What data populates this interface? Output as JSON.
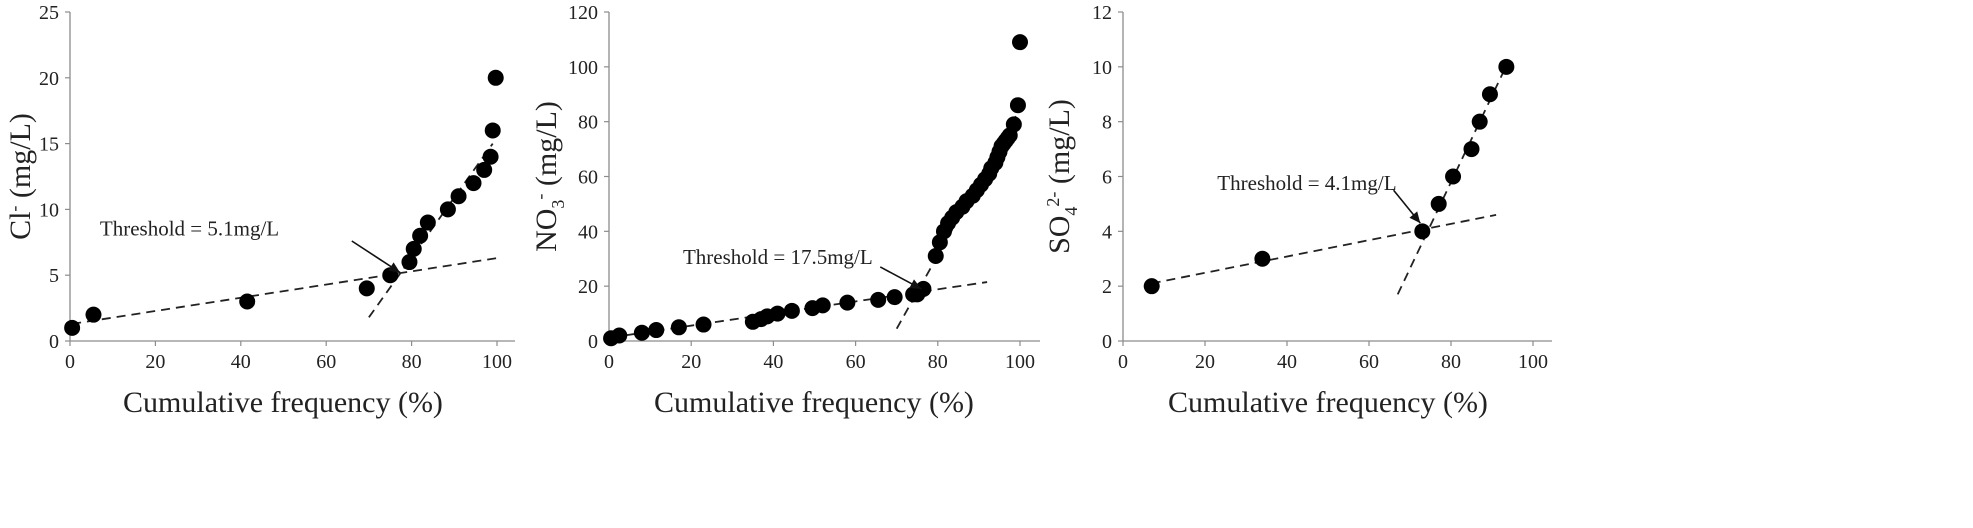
{
  "chart_data": [
    {
      "id": "cl",
      "type": "scatter",
      "ylabel_main": "Cl",
      "ylabel_sup": "-",
      "ylabel_unit": " (mg/L)",
      "xlabel": "Cumulative frequency (%)",
      "xlim": [
        0,
        100
      ],
      "ylim": [
        0,
        25
      ],
      "xticks": [
        0,
        20,
        40,
        60,
        80,
        100
      ],
      "yticks": [
        0,
        5,
        10,
        15,
        20,
        25
      ],
      "points": [
        [
          0.5,
          1
        ],
        [
          5.5,
          2
        ],
        [
          41.5,
          3
        ],
        [
          69.5,
          4
        ],
        [
          75,
          5
        ],
        [
          79.5,
          6
        ],
        [
          80.5,
          7
        ],
        [
          82,
          8
        ],
        [
          83.8,
          9
        ],
        [
          88.5,
          10
        ],
        [
          91,
          11
        ],
        [
          94.5,
          12
        ],
        [
          97,
          13
        ],
        [
          98.5,
          14
        ],
        [
          99,
          16
        ],
        [
          99.7,
          20
        ]
      ],
      "trend_lines": [
        [
          [
            0.5,
            1.3
          ],
          [
            100,
            6.3
          ]
        ],
        [
          [
            70,
            1.8
          ],
          [
            99,
            15
          ]
        ]
      ],
      "annotation": {
        "text": "Threshold = 5.1mg/L",
        "text_x": 7,
        "text_y": 8,
        "arrow_from": [
          66,
          7.6
        ],
        "arrow_to": [
          77.3,
          5.2
        ]
      }
    },
    {
      "id": "no3",
      "type": "scatter",
      "ylabel_main": "NO",
      "ylabel_sub": "3",
      "ylabel_sup": "-",
      "ylabel_unit": " (mg/L)",
      "xlabel": "Cumulative frequency (%)",
      "xlim": [
        0,
        100
      ],
      "ylim": [
        0,
        120
      ],
      "xticks": [
        0,
        20,
        40,
        60,
        80,
        100
      ],
      "yticks": [
        0,
        20,
        40,
        60,
        80,
        100,
        120
      ],
      "points": [
        [
          0.5,
          1
        ],
        [
          2.5,
          2
        ],
        [
          8,
          3
        ],
        [
          11.5,
          4
        ],
        [
          17,
          5
        ],
        [
          23,
          6
        ],
        [
          35,
          7
        ],
        [
          37,
          8
        ],
        [
          38.5,
          9
        ],
        [
          41,
          10
        ],
        [
          44.5,
          11
        ],
        [
          49.5,
          12
        ],
        [
          52,
          13
        ],
        [
          58,
          14
        ],
        [
          65.5,
          15
        ],
        [
          69.5,
          16
        ],
        [
          74,
          17
        ],
        [
          75,
          17
        ],
        [
          76.5,
          19
        ],
        [
          79.5,
          31
        ],
        [
          80.5,
          36
        ],
        [
          81.5,
          40
        ],
        [
          82.5,
          43
        ],
        [
          83.5,
          45
        ],
        [
          84.5,
          47
        ],
        [
          86,
          49
        ],
        [
          87,
          51
        ],
        [
          88.5,
          53
        ],
        [
          89.5,
          55
        ],
        [
          90.5,
          57
        ],
        [
          91.5,
          59
        ],
        [
          92.5,
          61
        ],
        [
          93,
          63
        ],
        [
          94,
          65
        ],
        [
          94.5,
          67
        ],
        [
          95,
          69
        ],
        [
          95.5,
          71
        ],
        [
          96,
          72
        ],
        [
          96.5,
          73
        ],
        [
          97,
          74
        ],
        [
          97.5,
          75
        ],
        [
          98.5,
          79
        ],
        [
          99.5,
          86
        ],
        [
          100,
          109
        ]
      ],
      "trend_lines": [
        [
          [
            0.5,
            1.3
          ],
          [
            92,
            21.5
          ]
        ],
        [
          [
            70,
            4.5
          ],
          [
            99,
            82
          ]
        ]
      ],
      "annotation": {
        "text": "Threshold = 17.5mg/L",
        "text_x": 18,
        "text_y": 28,
        "arrow_from": [
          66,
          27
        ],
        "arrow_to": [
          76,
          19
        ]
      }
    },
    {
      "id": "so4",
      "type": "scatter",
      "ylabel_main": "SO",
      "ylabel_sub": "4",
      "ylabel_sup": "2-",
      "ylabel_unit": " (mg/L)",
      "xlabel": "Cumulative frequency (%)",
      "xlim": [
        0,
        100
      ],
      "ylim": [
        0,
        12
      ],
      "xticks": [
        0,
        20,
        40,
        60,
        80,
        100
      ],
      "yticks": [
        0,
        2,
        4,
        6,
        8,
        10,
        12
      ],
      "points": [
        [
          7,
          2
        ],
        [
          34,
          3
        ],
        [
          73,
          4
        ],
        [
          77,
          5
        ],
        [
          80.5,
          6
        ],
        [
          85,
          7
        ],
        [
          87,
          8
        ],
        [
          89.5,
          9
        ],
        [
          93.5,
          10
        ]
      ],
      "trend_lines": [
        [
          [
            7,
            2.1
          ],
          [
            91,
            4.6
          ]
        ],
        [
          [
            67,
            1.7
          ],
          [
            94,
            10.2
          ]
        ]
      ],
      "annotation": {
        "text": "Threshold = 4.1mg/L",
        "text_x": 23,
        "text_y": 5.5,
        "arrow_from": [
          66,
          5.5
        ],
        "arrow_to": [
          72.5,
          4.3
        ]
      }
    }
  ]
}
